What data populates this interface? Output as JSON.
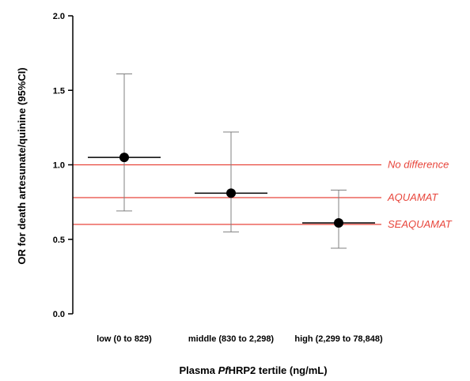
{
  "chart_data": {
    "type": "scatter",
    "title": "",
    "xlabel_parts": [
      "Plasma ",
      "Pf",
      "HRP2 tertile (ng/mL)"
    ],
    "ylabel": "OR for death artesunate/quinine (95%CI)",
    "ylim": [
      0.0,
      2.0
    ],
    "yticks": [
      "0.0",
      "0.5",
      "1.0",
      "1.5",
      "2.0"
    ],
    "categories": [
      "low (0 to 829)",
      "middle (830 to 2,298)",
      "high (2,299 to 78,848)"
    ],
    "points": [
      {
        "category": "low (0 to 829)",
        "or": 1.05,
        "ci_low": 0.69,
        "ci_high": 1.61
      },
      {
        "category": "middle (830 to 2,298)",
        "or": 0.81,
        "ci_low": 0.55,
        "ci_high": 1.22
      },
      {
        "category": "high (2,299 to 78,848)",
        "or": 0.61,
        "ci_low": 0.44,
        "ci_high": 0.83
      }
    ],
    "reference_lines": [
      {
        "label": "No difference",
        "value": 1.0
      },
      {
        "label": "AQUAMAT",
        "value": 0.78
      },
      {
        "label": "SEAQUAMAT",
        "value": 0.6
      }
    ],
    "colors": {
      "reference": "#e8463c",
      "error_bar": "#808080",
      "point": "#000000"
    },
    "grid": false,
    "legend": "none"
  }
}
